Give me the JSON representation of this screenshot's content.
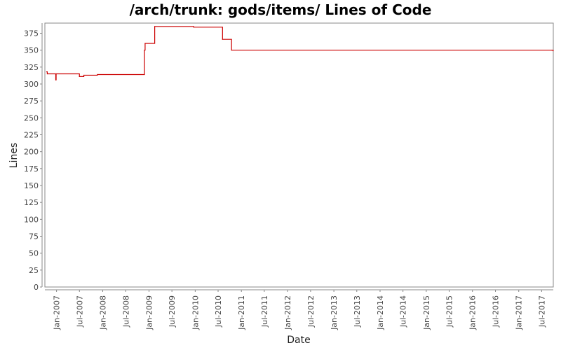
{
  "chart_data": {
    "type": "line",
    "title": "/arch/trunk: gods/items/ Lines of Code",
    "xlabel": "Date",
    "ylabel": "Lines",
    "ylim": [
      0,
      390
    ],
    "xlim": [
      "2006-10-01",
      "2017-10-01"
    ],
    "grid": false,
    "y_ticks": [
      0,
      25,
      50,
      75,
      100,
      125,
      150,
      175,
      200,
      225,
      250,
      275,
      300,
      325,
      350,
      375
    ],
    "x_ticks": [
      {
        "label": "Jan-2007",
        "date": "2007-01-01"
      },
      {
        "label": "Jul-2007",
        "date": "2007-07-01"
      },
      {
        "label": "Jan-2008",
        "date": "2008-01-01"
      },
      {
        "label": "Jul-2008",
        "date": "2008-07-01"
      },
      {
        "label": "Jan-2009",
        "date": "2009-01-01"
      },
      {
        "label": "Jul-2009",
        "date": "2009-07-01"
      },
      {
        "label": "Jan-2010",
        "date": "2010-01-01"
      },
      {
        "label": "Jul-2010",
        "date": "2010-07-01"
      },
      {
        "label": "Jan-2011",
        "date": "2011-01-01"
      },
      {
        "label": "Jul-2011",
        "date": "2011-07-01"
      },
      {
        "label": "Jan-2012",
        "date": "2012-01-01"
      },
      {
        "label": "Jul-2012",
        "date": "2012-07-01"
      },
      {
        "label": "Jan-2013",
        "date": "2013-01-01"
      },
      {
        "label": "Jul-2013",
        "date": "2013-07-01"
      },
      {
        "label": "Jan-2014",
        "date": "2014-01-01"
      },
      {
        "label": "Jul-2014",
        "date": "2014-07-01"
      },
      {
        "label": "Jan-2015",
        "date": "2015-01-01"
      },
      {
        "label": "Jul-2015",
        "date": "2015-07-01"
      },
      {
        "label": "Jan-2016",
        "date": "2016-01-01"
      },
      {
        "label": "Jul-2016",
        "date": "2016-07-01"
      },
      {
        "label": "Jan-2017",
        "date": "2017-01-01"
      },
      {
        "label": "Jul-2017",
        "date": "2017-07-01"
      }
    ],
    "series": [
      {
        "color": "#cc0000",
        "step": true,
        "points": [
          {
            "x": "2006-10-15",
            "y": 318
          },
          {
            "x": "2006-10-20",
            "y": 315
          },
          {
            "x": "2006-12-26",
            "y": 306
          },
          {
            "x": "2006-12-29",
            "y": 315
          },
          {
            "x": "2007-07-01",
            "y": 311
          },
          {
            "x": "2007-08-05",
            "y": 313
          },
          {
            "x": "2007-11-20",
            "y": 314
          },
          {
            "x": "2008-11-26",
            "y": 350
          },
          {
            "x": "2008-12-01",
            "y": 360
          },
          {
            "x": "2009-02-15",
            "y": 385
          },
          {
            "x": "2009-12-20",
            "y": 384
          },
          {
            "x": "2010-08-05",
            "y": 366
          },
          {
            "x": "2010-10-15",
            "y": 350
          },
          {
            "x": "2017-09-20",
            "y": 350
          },
          {
            "x": "2017-09-30",
            "y": 349
          }
        ]
      }
    ]
  }
}
